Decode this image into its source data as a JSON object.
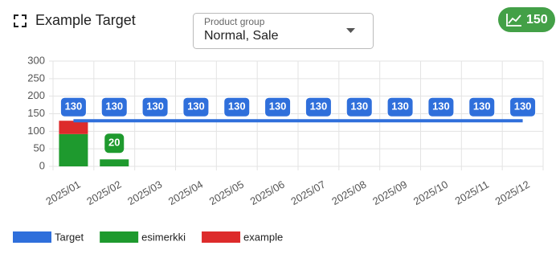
{
  "header": {
    "title": "Example Target",
    "dropdown_label": "Product group",
    "dropdown_value": "Normal, Sale",
    "badge": "150"
  },
  "chart_data": {
    "type": "bar",
    "categories": [
      "2025/01",
      "2025/02",
      "2025/03",
      "2025/04",
      "2025/05",
      "2025/06",
      "2025/07",
      "2025/08",
      "2025/09",
      "2025/10",
      "2025/11",
      "2025/12"
    ],
    "series": [
      {
        "name": "Target",
        "kind": "line",
        "color": "#2f6fdb",
        "values": [
          130,
          130,
          130,
          130,
          130,
          130,
          130,
          130,
          130,
          130,
          130,
          130
        ],
        "value_labels": [
          "130",
          "130",
          "130",
          "130",
          "130",
          "130",
          "130",
          "130",
          "130",
          "130",
          "130",
          "130"
        ]
      },
      {
        "name": "esimerkki",
        "kind": "bar",
        "color": "#1e9a2e",
        "values": [
          92,
          20,
          null,
          null,
          null,
          null,
          null,
          null,
          null,
          null,
          null,
          null
        ],
        "value_labels": [
          null,
          "20",
          null,
          null,
          null,
          null,
          null,
          null,
          null,
          null,
          null,
          null
        ]
      },
      {
        "name": "example",
        "kind": "bar",
        "color": "#dd2b2b",
        "values": [
          38,
          null,
          null,
          null,
          null,
          null,
          null,
          null,
          null,
          null,
          null,
          null
        ]
      }
    ],
    "ylim": [
      0,
      300
    ],
    "yticks": [
      0,
      50,
      100,
      150,
      200,
      250,
      300
    ],
    "grid": true,
    "legend": "bottom"
  }
}
